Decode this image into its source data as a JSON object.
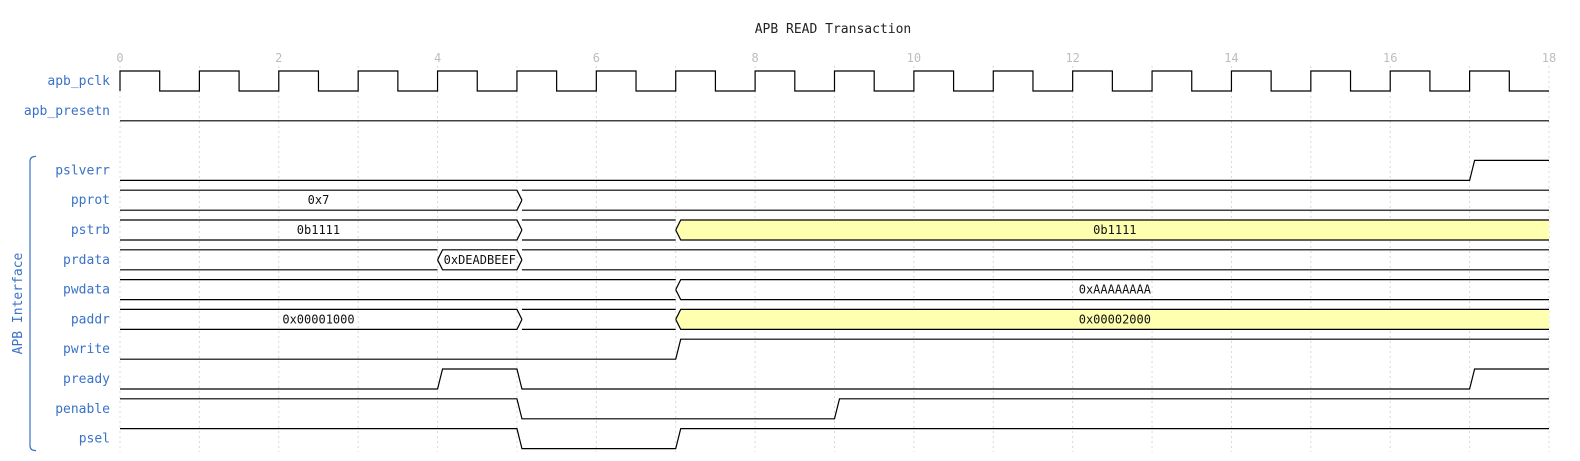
{
  "title": "APB READ Transaction",
  "colors": {
    "label": "#3a72c8",
    "wave": "#000000",
    "tick": "#bdbdbd",
    "grid": "#d8d8d8",
    "highlight": "#ffffb0",
    "group": "#3a72c8"
  },
  "time_axis": {
    "start": 0,
    "end": 18,
    "ticks": [
      "0",
      "2",
      "4",
      "6",
      "8",
      "10",
      "12",
      "14",
      "16",
      "18"
    ]
  },
  "group": {
    "label": "APB Interface"
  },
  "signals": [
    {
      "name": "apb_pclk",
      "kind": "clock",
      "period": 1
    },
    {
      "name": "apb_presetn",
      "kind": "bit",
      "segments": [
        {
          "t0": 0,
          "t1": 18,
          "level": 0
        }
      ]
    },
    {
      "name": "pslverr",
      "kind": "bit",
      "segments": [
        {
          "t0": 0,
          "t1": 17,
          "level": 0
        },
        {
          "t0": 17,
          "t1": 18,
          "level": 1
        }
      ]
    },
    {
      "name": "pprot",
      "kind": "bus",
      "segments": [
        {
          "t0": 0,
          "t1": 5,
          "state": "data",
          "label": "0x7"
        },
        {
          "t0": 5,
          "t1": 18,
          "state": "z"
        }
      ]
    },
    {
      "name": "pstrb",
      "kind": "bus",
      "segments": [
        {
          "t0": 0,
          "t1": 5,
          "state": "data",
          "label": "0b1111"
        },
        {
          "t0": 5,
          "t1": 7,
          "state": "z"
        },
        {
          "t0": 7,
          "t1": 18,
          "state": "data",
          "label": "0b1111",
          "highlight": true
        }
      ]
    },
    {
      "name": "prdata",
      "kind": "bus",
      "segments": [
        {
          "t0": 0,
          "t1": 4,
          "state": "z"
        },
        {
          "t0": 4,
          "t1": 5,
          "state": "data",
          "label": "0xDEADBEEF"
        },
        {
          "t0": 5,
          "t1": 18,
          "state": "z"
        }
      ]
    },
    {
      "name": "pwdata",
      "kind": "bus",
      "segments": [
        {
          "t0": 0,
          "t1": 7,
          "state": "z"
        },
        {
          "t0": 7,
          "t1": 18,
          "state": "data",
          "label": "0xAAAAAAAA"
        }
      ]
    },
    {
      "name": "paddr",
      "kind": "bus",
      "segments": [
        {
          "t0": 0,
          "t1": 5,
          "state": "data",
          "label": "0x00001000"
        },
        {
          "t0": 5,
          "t1": 7,
          "state": "z"
        },
        {
          "t0": 7,
          "t1": 18,
          "state": "data",
          "label": "0x00002000",
          "highlight": true
        }
      ]
    },
    {
      "name": "pwrite",
      "kind": "bit",
      "segments": [
        {
          "t0": 0,
          "t1": 7,
          "level": 0
        },
        {
          "t0": 7,
          "t1": 18,
          "level": 1
        }
      ]
    },
    {
      "name": "pready",
      "kind": "bit",
      "segments": [
        {
          "t0": 0,
          "t1": 4,
          "level": 0
        },
        {
          "t0": 4,
          "t1": 5,
          "level": 1
        },
        {
          "t0": 5,
          "t1": 17,
          "level": 0
        },
        {
          "t0": 17,
          "t1": 18,
          "level": 1
        }
      ]
    },
    {
      "name": "penable",
      "kind": "bit",
      "segments": [
        {
          "t0": 0,
          "t1": 5,
          "level": 1
        },
        {
          "t0": 5,
          "t1": 9,
          "level": 0
        },
        {
          "t0": 9,
          "t1": 18,
          "level": 1
        }
      ]
    },
    {
      "name": "psel",
      "kind": "bit",
      "segments": [
        {
          "t0": 0,
          "t1": 5,
          "level": 1
        },
        {
          "t0": 5,
          "t1": 7,
          "level": 0
        },
        {
          "t0": 7,
          "t1": 18,
          "level": 1
        }
      ]
    }
  ]
}
